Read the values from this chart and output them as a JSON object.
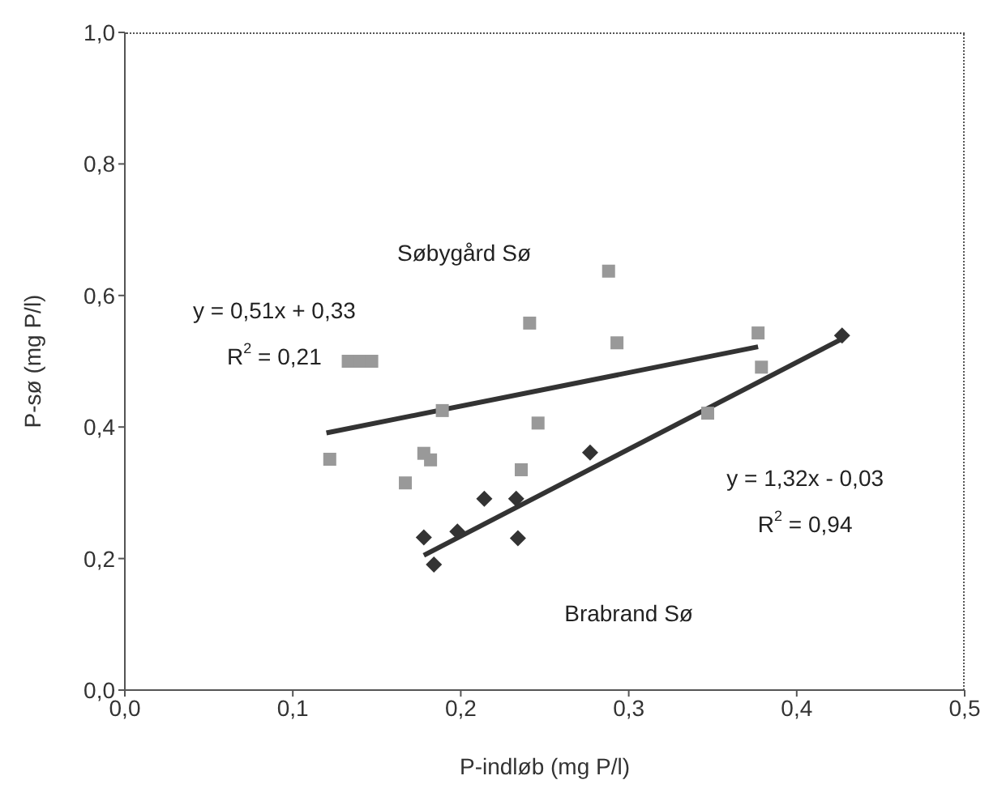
{
  "chart_data": {
    "type": "scatter",
    "xlabel": "P-indløb (mg P/l)",
    "ylabel": "P-sø (mg P/l)",
    "xlim": [
      0,
      0.5
    ],
    "ylim": [
      0,
      1
    ],
    "xticks": [
      {
        "value": 0,
        "label": "0,0"
      },
      {
        "value": 0.1,
        "label": "0,1"
      },
      {
        "value": 0.2,
        "label": "0,2"
      },
      {
        "value": 0.3,
        "label": "0,3"
      },
      {
        "value": 0.4,
        "label": "0,4"
      },
      {
        "value": 0.5,
        "label": "0,5"
      }
    ],
    "yticks": [
      {
        "value": 0,
        "label": "0,0"
      },
      {
        "value": 0.2,
        "label": "0,2"
      },
      {
        "value": 0.4,
        "label": "0,4"
      },
      {
        "value": 0.6,
        "label": "0,6"
      },
      {
        "value": 0.8,
        "label": "0,8"
      },
      {
        "value": 1,
        "label": "1,0"
      }
    ],
    "grid": false,
    "legend": false,
    "series": [
      {
        "type": "scatter",
        "marker": "square",
        "color": "#999999",
        "x": [
          0.122,
          0.133,
          0.14,
          0.147,
          0.167,
          0.178,
          0.182,
          0.189,
          0.236,
          0.241,
          0.246,
          0.288,
          0.293,
          0.347,
          0.377,
          0.379
        ],
        "values": [
          0.351,
          0.5,
          0.5,
          0.5,
          0.315,
          0.36,
          0.35,
          0.425,
          0.335,
          0.558,
          0.406,
          0.637,
          0.528,
          0.421,
          0.543,
          0.491
        ]
      },
      {
        "type": "scatter",
        "marker": "diamond",
        "color": "#333333",
        "x": [
          0.178,
          0.184,
          0.198,
          0.214,
          0.233,
          0.234,
          0.277,
          0.427
        ],
        "values": [
          0.232,
          0.191,
          0.241,
          0.291,
          0.291,
          0.231,
          0.361,
          0.539
        ]
      },
      {
        "type": "line",
        "color": "#333333",
        "x": [
          0.12,
          0.377
        ],
        "values": [
          0.391,
          0.522
        ]
      },
      {
        "type": "line",
        "color": "#333333",
        "x": [
          0.178,
          0.427
        ],
        "values": [
          0.205,
          0.534
        ]
      }
    ],
    "annotations": [
      "Søbygård Sø",
      "y = 0,51x + 0,33",
      "R$^{2}$ = 0,21",
      "y = 1,32x - 0,03",
      "R$^{2}$ = 0,94",
      "Brabrand Sø"
    ]
  }
}
